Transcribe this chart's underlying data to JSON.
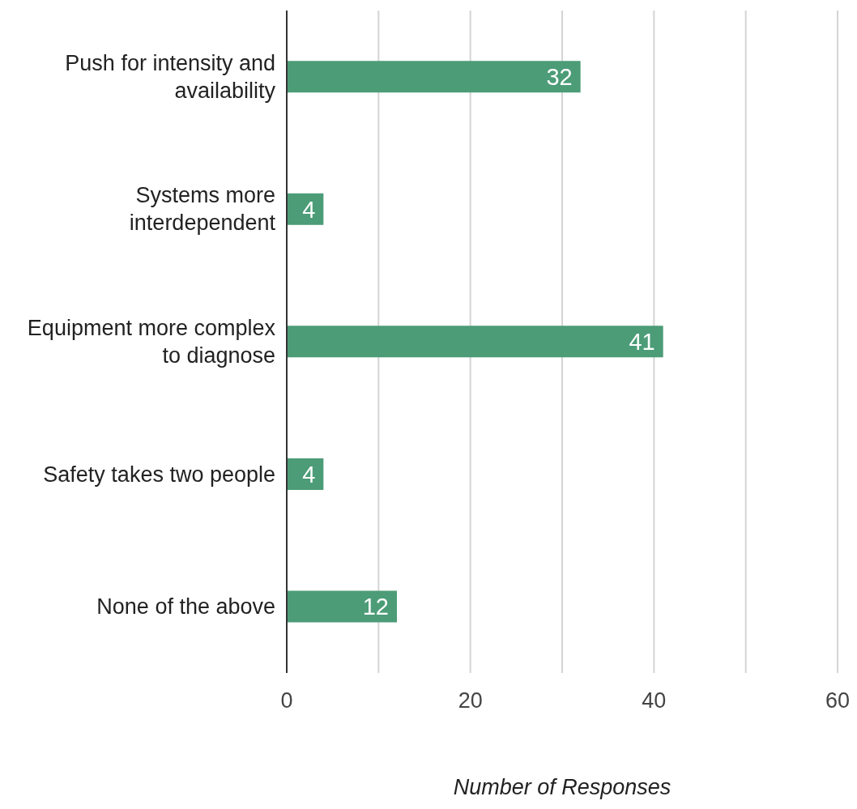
{
  "chart_data": {
    "type": "bar",
    "orientation": "horizontal",
    "xlabel": "Number of Responses",
    "categories": [
      "Push for intensity and availability",
      "Systems more interdependent",
      "Equipment more complex to diagnose",
      "Safety takes two people",
      "None of the above"
    ],
    "values": [
      32,
      4,
      41,
      4,
      12
    ],
    "color": "#4c9c77",
    "data_labels": true,
    "grid": "x",
    "xlim": [
      0,
      60
    ],
    "xticks": [
      0,
      {
        "value": 10,
        "label": null
      },
      20,
      {
        "value": 30,
        "label": null
      },
      40,
      {
        "value": 50,
        "label": null
      },
      60
    ]
  }
}
